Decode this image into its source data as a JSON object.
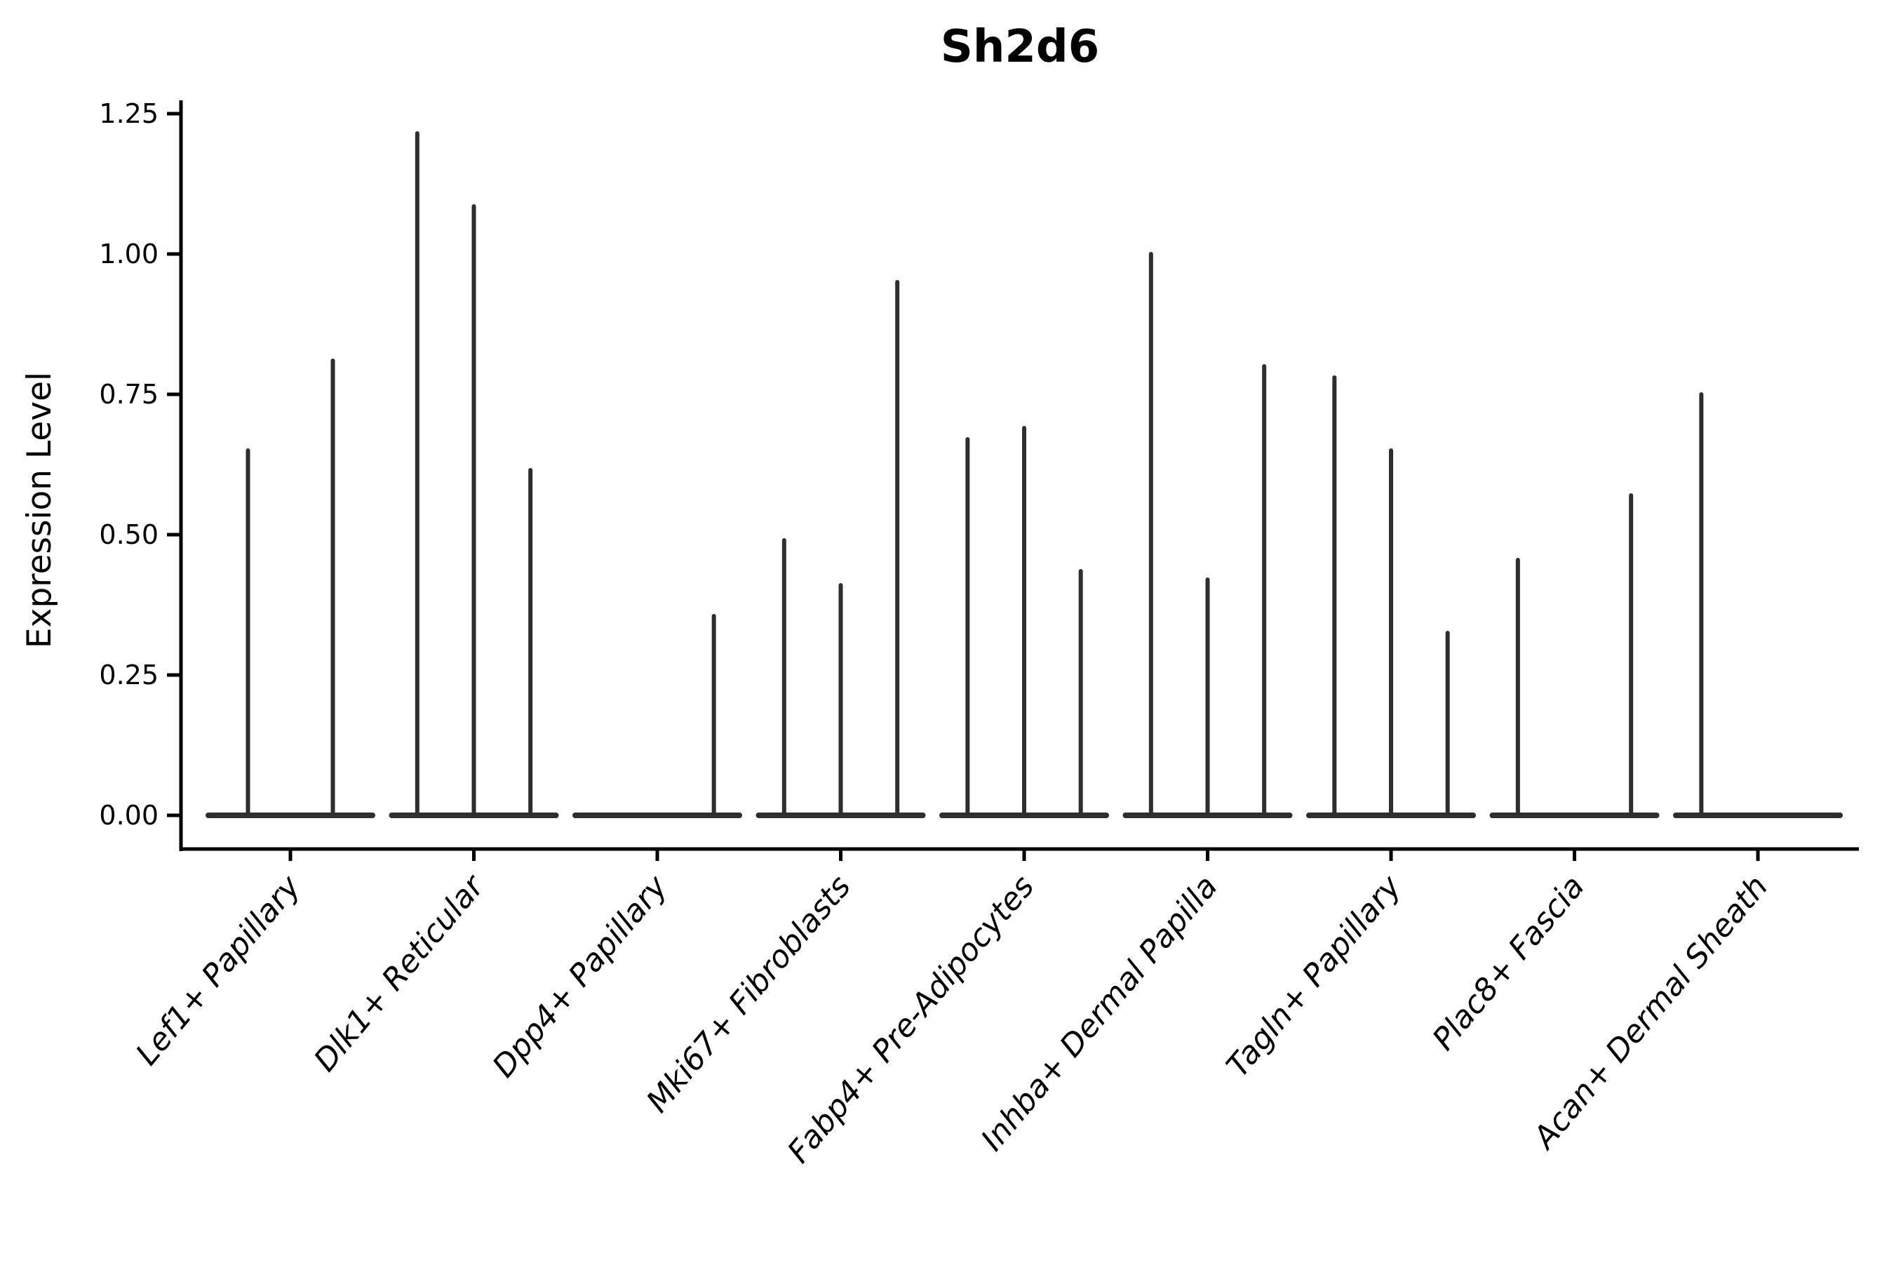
{
  "chart_data": {
    "type": "violin",
    "title": "Sh2d6",
    "ylabel": "Expression Level",
    "xlabel": "",
    "ylim": [
      -0.06,
      1.27
    ],
    "yticks": [
      0,
      0.25,
      0.5,
      0.75,
      1.0,
      1.25
    ],
    "ytick_labels": [
      "0.00",
      "0.25",
      "0.50",
      "0.75",
      "1.00",
      "1.25"
    ],
    "grid": false,
    "legend": false,
    "categories": [
      "Lef1+ Papillary",
      "Dlk1+ Reticular",
      "Dpp4+ Papillary",
      "Mki67+ Fibroblasts",
      "Fabp4+ Pre-Adipocytes",
      "Inhba+ Dermal Papilla",
      "Tagln+ Papillary",
      "Plac8+ Fascia",
      "Acan+ Dermal Sheath"
    ],
    "groups": [
      {
        "category": "Lef1+ Papillary",
        "violin_max_values": [
          0.65,
          0.81
        ]
      },
      {
        "category": "Dlk1+ Reticular",
        "violin_max_values": [
          1.215,
          1.085,
          0.615
        ]
      },
      {
        "category": "Dpp4+ Papillary",
        "violin_max_values": [
          0,
          0,
          0.355
        ]
      },
      {
        "category": "Mki67+ Fibroblasts",
        "violin_max_values": [
          0.49,
          0.41,
          0.95
        ]
      },
      {
        "category": "Fabp4+ Pre-Adipocytes",
        "violin_max_values": [
          0.67,
          0.69,
          0.435
        ]
      },
      {
        "category": "Inhba+ Dermal Papilla",
        "violin_max_values": [
          1.0,
          0.42,
          0.8
        ]
      },
      {
        "category": "Tagln+ Papillary",
        "violin_max_values": [
          0.78,
          0.65,
          0.325
        ]
      },
      {
        "category": "Plac8+ Fascia",
        "violin_max_values": [
          0.455,
          0,
          0.57
        ]
      },
      {
        "category": "Acan+ Dermal Sheath",
        "violin_max_values": [
          0.75,
          0,
          0
        ]
      }
    ],
    "colors": {
      "violin": "#2e2e2e",
      "axis": "#000000",
      "background": "#ffffff"
    }
  }
}
